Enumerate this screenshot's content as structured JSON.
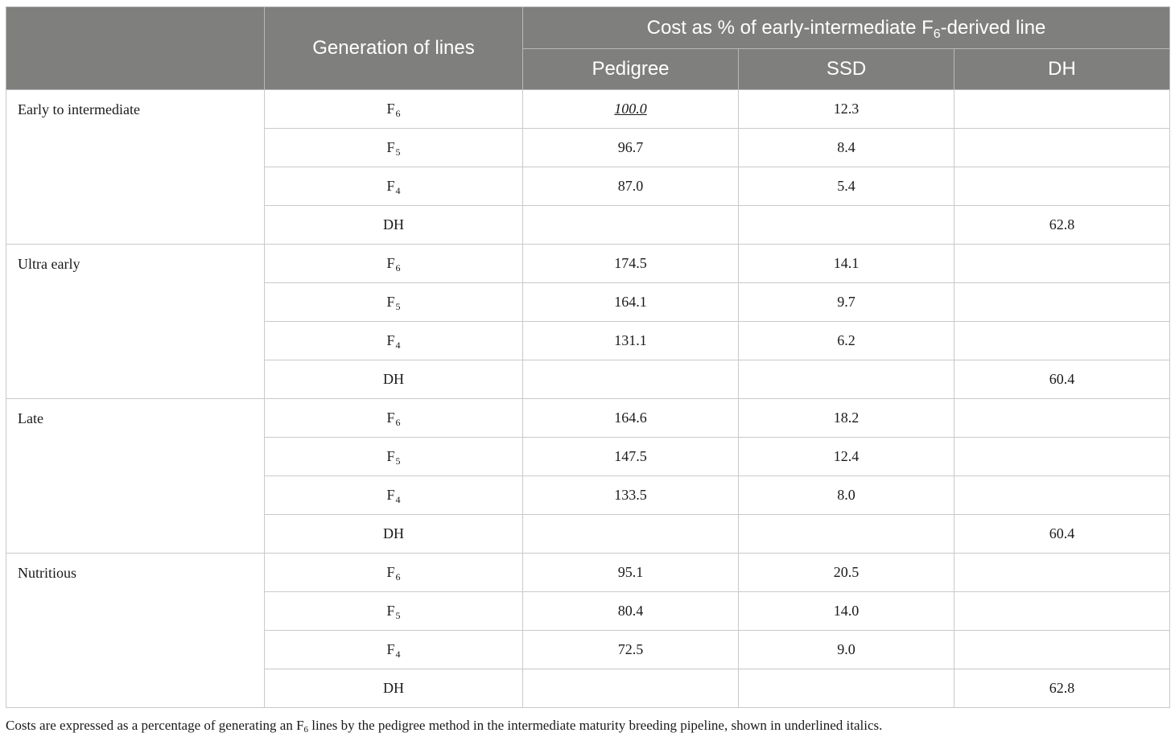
{
  "header": {
    "generation_label": "Generation of lines",
    "cost_prefix": "Cost as % of early-intermediate F",
    "cost_subscript": "6",
    "cost_suffix": "-derived line",
    "columns": [
      "Pedigree",
      "SSD",
      "DH"
    ]
  },
  "groups": [
    {
      "name": "Early to intermediate",
      "rows": [
        {
          "gen": "F",
          "gen_sub": "6",
          "pedigree": "100.0",
          "ssd": "12.3",
          "dh": ""
        },
        {
          "gen": "F",
          "gen_sub": "5",
          "pedigree": "96.7",
          "ssd": "8.4",
          "dh": ""
        },
        {
          "gen": "F",
          "gen_sub": "4",
          "pedigree": "87.0",
          "ssd": "5.4",
          "dh": ""
        },
        {
          "gen": "DH",
          "gen_sub": "",
          "pedigree": "",
          "ssd": "",
          "dh": "62.8"
        }
      ]
    },
    {
      "name": "Ultra early",
      "rows": [
        {
          "gen": "F",
          "gen_sub": "6",
          "pedigree": "174.5",
          "ssd": "14.1",
          "dh": ""
        },
        {
          "gen": "F",
          "gen_sub": "5",
          "pedigree": "164.1",
          "ssd": "9.7",
          "dh": ""
        },
        {
          "gen": "F",
          "gen_sub": "4",
          "pedigree": "131.1",
          "ssd": "6.2",
          "dh": ""
        },
        {
          "gen": "DH",
          "gen_sub": "",
          "pedigree": "",
          "ssd": "",
          "dh": "60.4"
        }
      ]
    },
    {
      "name": "Late",
      "rows": [
        {
          "gen": "F",
          "gen_sub": "6",
          "pedigree": "164.6",
          "ssd": "18.2",
          "dh": ""
        },
        {
          "gen": "F",
          "gen_sub": "5",
          "pedigree": "147.5",
          "ssd": "12.4",
          "dh": ""
        },
        {
          "gen": "F",
          "gen_sub": "4",
          "pedigree": "133.5",
          "ssd": "8.0",
          "dh": ""
        },
        {
          "gen": "DH",
          "gen_sub": "",
          "pedigree": "",
          "ssd": "",
          "dh": "60.4"
        }
      ]
    },
    {
      "name": "Nutritious",
      "rows": [
        {
          "gen": "F",
          "gen_sub": "6",
          "pedigree": "95.1",
          "ssd": "20.5",
          "dh": ""
        },
        {
          "gen": "F",
          "gen_sub": "5",
          "pedigree": "80.4",
          "ssd": "14.0",
          "dh": ""
        },
        {
          "gen": "F",
          "gen_sub": "4",
          "pedigree": "72.5",
          "ssd": "9.0",
          "dh": ""
        },
        {
          "gen": "DH",
          "gen_sub": "",
          "pedigree": "",
          "ssd": "",
          "dh": "62.8"
        }
      ]
    }
  ],
  "footnote": {
    "before": "Costs are expressed as a percentage of generating an F",
    "sub": "6",
    "after": " lines by the pedigree method in the intermediate maturity breeding pipeline, shown in underlined italics."
  },
  "colors": {
    "header_bg": "#7f807e",
    "header_text": "#ffffff",
    "border": "#c9c9c9"
  }
}
